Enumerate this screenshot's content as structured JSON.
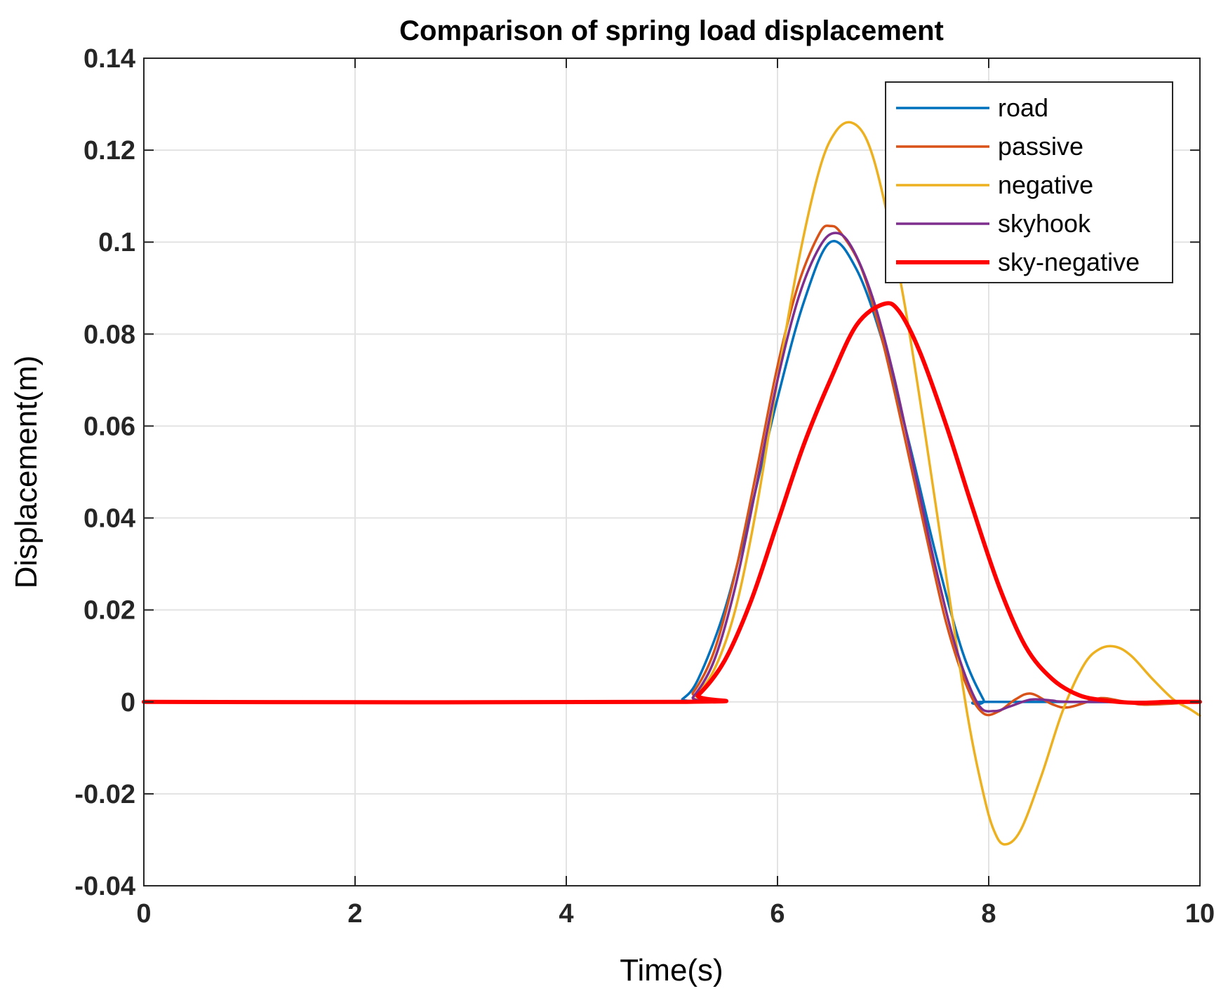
{
  "chart_data": {
    "type": "line",
    "title": "Comparison of spring load displacement",
    "xlabel": "Time(s)",
    "ylabel": "Displacement(m)",
    "xlim": [
      0,
      10
    ],
    "ylim": [
      -0.04,
      0.14
    ],
    "xticks": [
      0,
      2,
      4,
      6,
      8,
      10
    ],
    "xtick_labels": [
      "0",
      "2",
      "4",
      "6",
      "8",
      "10"
    ],
    "yticks": [
      -0.04,
      -0.02,
      0,
      0.02,
      0.04,
      0.06,
      0.08,
      0.1,
      0.12,
      0.14
    ],
    "ytick_labels": [
      "-0.04",
      "-0.02",
      "0",
      "0.02",
      "0.04",
      "0.06",
      "0.08",
      "0.1",
      "0.12",
      "0.14"
    ],
    "grid": true,
    "legend_position": "top-right",
    "series": [
      {
        "name": "road",
        "color": "#0072BD",
        "points": [
          [
            0,
            0
          ],
          [
            5.0,
            0
          ],
          [
            5.1,
            0.0006
          ],
          [
            5.25,
            0.005
          ],
          [
            5.5,
            0.02
          ],
          [
            5.75,
            0.042
          ],
          [
            6.0,
            0.066
          ],
          [
            6.25,
            0.087
          ],
          [
            6.5,
            0.1
          ],
          [
            6.75,
            0.094
          ],
          [
            7.0,
            0.078
          ],
          [
            7.25,
            0.056
          ],
          [
            7.5,
            0.032
          ],
          [
            7.75,
            0.011
          ],
          [
            7.95,
            0.0005
          ],
          [
            8.0,
            0
          ],
          [
            10,
            0
          ]
        ]
      },
      {
        "name": "passive",
        "color": "#D95319",
        "points": [
          [
            0,
            0
          ],
          [
            5.05,
            0
          ],
          [
            5.2,
            0.002
          ],
          [
            5.4,
            0.011
          ],
          [
            5.6,
            0.028
          ],
          [
            5.8,
            0.05
          ],
          [
            6.0,
            0.073
          ],
          [
            6.2,
            0.091
          ],
          [
            6.4,
            0.102
          ],
          [
            6.5,
            0.1035
          ],
          [
            6.6,
            0.102
          ],
          [
            6.8,
            0.094
          ],
          [
            7.0,
            0.078
          ],
          [
            7.2,
            0.058
          ],
          [
            7.4,
            0.037
          ],
          [
            7.6,
            0.017
          ],
          [
            7.8,
            0.003
          ],
          [
            7.95,
            -0.0025
          ],
          [
            8.1,
            -0.002
          ],
          [
            8.25,
            0.0005
          ],
          [
            8.4,
            0.0018
          ],
          [
            8.6,
            -0.0005
          ],
          [
            8.75,
            -0.0012
          ],
          [
            9.0,
            0.0005
          ],
          [
            9.1,
            0.0008
          ],
          [
            9.3,
            0
          ],
          [
            9.5,
            -0.0006
          ],
          [
            10,
            0
          ]
        ]
      },
      {
        "name": "negative",
        "color": "#EDB120",
        "points": [
          [
            0,
            0
          ],
          [
            5.05,
            0
          ],
          [
            5.2,
            0.001
          ],
          [
            5.4,
            0.007
          ],
          [
            5.6,
            0.02
          ],
          [
            5.8,
            0.042
          ],
          [
            6.0,
            0.07
          ],
          [
            6.2,
            0.096
          ],
          [
            6.4,
            0.116
          ],
          [
            6.55,
            0.124
          ],
          [
            6.7,
            0.126
          ],
          [
            6.85,
            0.122
          ],
          [
            7.0,
            0.11
          ],
          [
            7.2,
            0.087
          ],
          [
            7.4,
            0.058
          ],
          [
            7.6,
            0.027
          ],
          [
            7.8,
            -0.003
          ],
          [
            7.95,
            -0.02
          ],
          [
            8.05,
            -0.028
          ],
          [
            8.15,
            -0.031
          ],
          [
            8.3,
            -0.028
          ],
          [
            8.5,
            -0.016
          ],
          [
            8.7,
            -0.002
          ],
          [
            8.9,
            0.008
          ],
          [
            9.05,
            0.0115
          ],
          [
            9.2,
            0.012
          ],
          [
            9.35,
            0.01
          ],
          [
            9.55,
            0.005
          ],
          [
            9.75,
            0.0005
          ],
          [
            9.9,
            -0.0015
          ],
          [
            10,
            -0.003
          ]
        ]
      },
      {
        "name": "skyhook",
        "color": "#7E2F8E",
        "points": [
          [
            0,
            0
          ],
          [
            5.1,
            0
          ],
          [
            5.2,
            0.001
          ],
          [
            5.4,
            0.009
          ],
          [
            5.6,
            0.025
          ],
          [
            5.8,
            0.047
          ],
          [
            6.0,
            0.07
          ],
          [
            6.2,
            0.088
          ],
          [
            6.4,
            0.099
          ],
          [
            6.55,
            0.102
          ],
          [
            6.7,
            0.099
          ],
          [
            6.9,
            0.088
          ],
          [
            7.1,
            0.071
          ],
          [
            7.3,
            0.05
          ],
          [
            7.5,
            0.029
          ],
          [
            7.7,
            0.011
          ],
          [
            7.9,
            -0.0005
          ],
          [
            8.05,
            -0.002
          ],
          [
            8.2,
            -0.001
          ],
          [
            8.4,
            0.0005
          ],
          [
            8.6,
            0.0003
          ],
          [
            8.8,
            0
          ],
          [
            10,
            0
          ]
        ]
      },
      {
        "name": "sky-negative",
        "color": "#FF0000",
        "points": [
          [
            0,
            0
          ],
          [
            5.1,
            0
          ],
          [
            5.25,
            0.0015
          ],
          [
            5.5,
            0.009
          ],
          [
            5.75,
            0.022
          ],
          [
            6.0,
            0.039
          ],
          [
            6.25,
            0.056
          ],
          [
            6.5,
            0.07
          ],
          [
            6.75,
            0.082
          ],
          [
            7.0,
            0.0865
          ],
          [
            7.15,
            0.085
          ],
          [
            7.35,
            0.076
          ],
          [
            7.6,
            0.06
          ],
          [
            7.85,
            0.042
          ],
          [
            8.1,
            0.025
          ],
          [
            8.35,
            0.012
          ],
          [
            8.6,
            0.005
          ],
          [
            8.85,
            0.0015
          ],
          [
            9.1,
            0.0003
          ],
          [
            9.4,
            -0.0002
          ],
          [
            9.7,
            0
          ],
          [
            10,
            0
          ]
        ]
      }
    ]
  }
}
